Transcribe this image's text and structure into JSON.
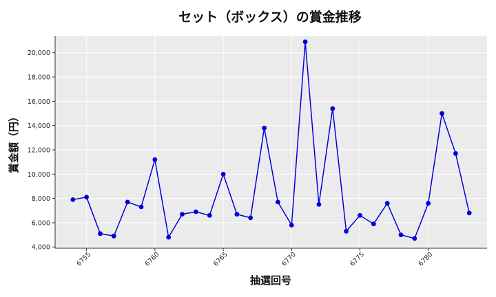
{
  "chart_data": {
    "type": "line",
    "title": "セット（ボックス）の賞金推移",
    "xlabel": "抽選回号",
    "ylabel": "賞金額（円）",
    "x": [
      6754,
      6755,
      6756,
      6757,
      6758,
      6759,
      6760,
      6761,
      6762,
      6763,
      6764,
      6765,
      6766,
      6767,
      6768,
      6769,
      6770,
      6771,
      6772,
      6773,
      6774,
      6775,
      6776,
      6777,
      6778,
      6779,
      6780,
      6781,
      6782,
      6783
    ],
    "series": [
      {
        "values": [
          7900,
          8100,
          5100,
          4900,
          7700,
          7300,
          11200,
          4800,
          6700,
          6900,
          6600,
          10000,
          6700,
          6400,
          13800,
          7700,
          5800,
          20900,
          7500,
          15400,
          5300,
          6600,
          5900,
          7600,
          5000,
          4700,
          7600,
          15000,
          11700,
          6800
        ]
      }
    ],
    "xticks": [
      6755,
      6760,
      6765,
      6770,
      6775,
      6780
    ],
    "yticks": [
      4000,
      6000,
      8000,
      10000,
      12000,
      14000,
      16000,
      18000,
      20000
    ],
    "xlim": [
      6752.7,
      6784.3
    ],
    "ylim": [
      3900,
      21400
    ],
    "grid": true,
    "legend": "none",
    "colors": {
      "line": "#0000dd",
      "marker": "#0000dd",
      "background": "#ebebeb",
      "grid": "#ffffff"
    }
  }
}
